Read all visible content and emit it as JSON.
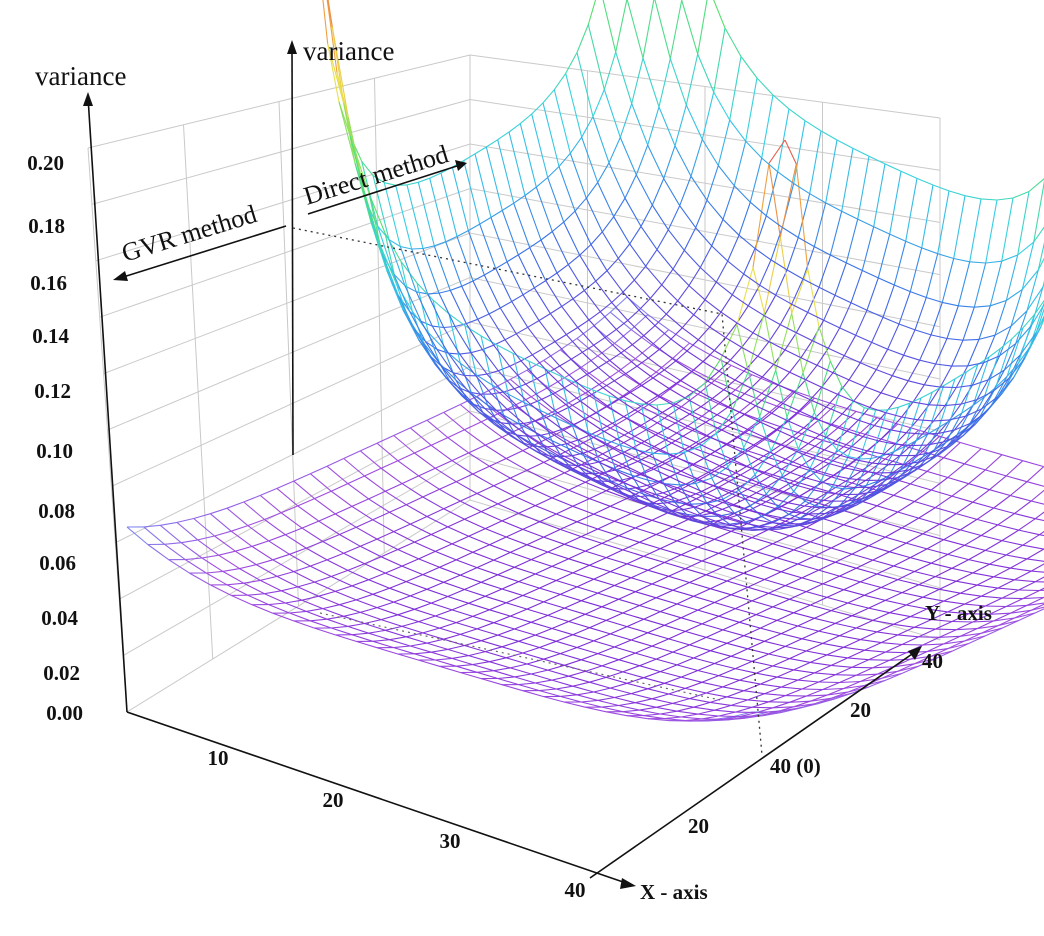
{
  "chart_data": {
    "type": "surface3d",
    "title": "",
    "zlabel_left": "variance",
    "zlabel_right": "variance",
    "zticks": [
      "0.00",
      "0.02",
      "0.04",
      "0.06",
      "0.08",
      "0.10",
      "0.12",
      "0.14",
      "0.16",
      "0.18",
      "0.20"
    ],
    "zlim": [
      0,
      0.2
    ],
    "xlabel": "X - axis",
    "xticks": [
      "10",
      "20",
      "30",
      "40"
    ],
    "ylabel": "Y - axis",
    "yticks": [
      "20",
      "40 (0)",
      "20",
      "40"
    ],
    "annotations": [
      "GVR method",
      "Direct method"
    ],
    "series": [
      {
        "name": "GVR method",
        "color_scale": [
          "#7a2bd6",
          "#a14ee0",
          "#7b8cf0"
        ],
        "min_variance": 0.005,
        "edge_variance": 0.035,
        "peak_variance": 0.035
      },
      {
        "name": "Direct method",
        "color_scale": [
          "#7a2bd6",
          "#3a6fe8",
          "#35d0e6",
          "#57e06a",
          "#e8e04a",
          "#f0a040",
          "#e05050"
        ],
        "min_variance": 0.005,
        "edge_variance": 0.06,
        "peak_variance": 0.2
      }
    ]
  }
}
